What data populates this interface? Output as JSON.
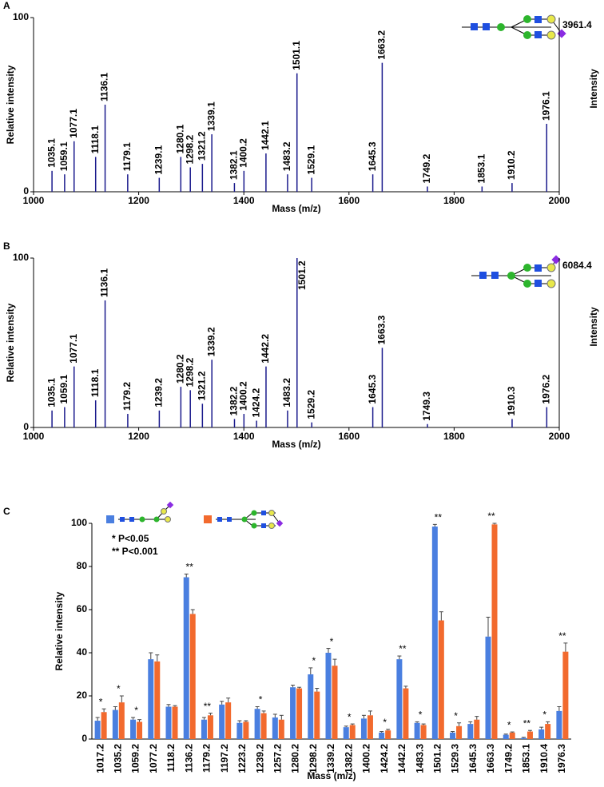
{
  "chart_data": [
    {
      "type": "spectrum",
      "panel": "A",
      "ylabel": "Relative intensity",
      "xlabel": "Mass (m/z)",
      "y2label": "Intensity",
      "max_intensity": 3961.4,
      "color": "#1a1a8c",
      "xlim": [
        1000,
        2000
      ],
      "xticks": [
        1000,
        1200,
        1400,
        1600,
        1800,
        2000
      ],
      "ylim": [
        0,
        100
      ],
      "yticks": [
        0,
        100
      ],
      "x": [
        1035.1,
        1059.1,
        1077.1,
        1118.1,
        1136.1,
        1179.1,
        1239.1,
        1280.1,
        1298.2,
        1321.2,
        1339.1,
        1382.1,
        1400.2,
        1442.1,
        1483.2,
        1501.1,
        1529.1,
        1645.3,
        1663.2,
        1749.2,
        1853.1,
        1910.2,
        1976.1
      ],
      "values": [
        12,
        10,
        29,
        20,
        50,
        10,
        8,
        20,
        14,
        16,
        33,
        5,
        12,
        22,
        10,
        68,
        8,
        10,
        74,
        3,
        3,
        5,
        39
      ]
    },
    {
      "type": "spectrum",
      "panel": "B",
      "ylabel": "Relative intensity",
      "xlabel": "Mass (m/z)",
      "y2label": "Intensity",
      "max_intensity": 6084.4,
      "color": "#1a1a8c",
      "xlim": [
        1000,
        2000
      ],
      "xticks": [
        1000,
        1200,
        1400,
        1600,
        1800,
        2000
      ],
      "ylim": [
        0,
        100
      ],
      "yticks": [
        0,
        100
      ],
      "x": [
        1035.1,
        1059.1,
        1077.1,
        1118.1,
        1136.1,
        1179.2,
        1239.2,
        1280.2,
        1298.2,
        1321.2,
        1339.2,
        1382.2,
        1400.2,
        1424.2,
        1442.2,
        1483.2,
        1501.2,
        1529.2,
        1645.3,
        1663.3,
        1749.3,
        1910.3,
        1976.2
      ],
      "values": [
        10,
        12,
        36,
        16,
        75,
        8,
        10,
        24,
        22,
        14,
        40,
        5,
        8,
        4,
        36,
        10,
        100,
        3,
        12,
        47,
        2,
        5,
        12
      ]
    },
    {
      "type": "bar",
      "panel": "C",
      "ylabel": "Relative intensity",
      "xlabel": "Mass (m/z)",
      "annotations": [
        "* P<0.05",
        "** P<0.001"
      ],
      "categories": [
        "1017.2",
        "1035.2",
        "1059.2",
        "1077.2",
        "1118.2",
        "1136.2",
        "1179.2",
        "1197.2",
        "1223.2",
        "1239.2",
        "1257.2",
        "1280.2",
        "1298.2",
        "1339.2",
        "1382.2",
        "1400.2",
        "1424.2",
        "1442.2",
        "1483.3",
        "1501.2",
        "1529.3",
        "1645.3",
        "1663.3",
        "1749.2",
        "1853.1",
        "1910.4",
        "1976.3"
      ],
      "ylim": [
        0,
        100
      ],
      "yticks": [
        0,
        20,
        40,
        60,
        80,
        100
      ],
      "series": [
        {
          "color": "#4a7fe0",
          "values": [
            8.5,
            13.5,
            9,
            37,
            15,
            75,
            9,
            16,
            7.5,
            14,
            10,
            24,
            30,
            40,
            5.5,
            9.5,
            3,
            37,
            7.5,
            98.5,
            3,
            7,
            47.5,
            2,
            0.5,
            4.5,
            13
          ],
          "errors": [
            1.5,
            1.5,
            1,
            3,
            1,
            1.5,
            1,
            1.5,
            1,
            1,
            1.5,
            1,
            3,
            2,
            0.5,
            1.5,
            0.5,
            1.5,
            0.5,
            1,
            0.5,
            1,
            9,
            0.3,
            0.3,
            1,
            2
          ]
        },
        {
          "color": "#f26a2e",
          "values": [
            12.5,
            17,
            8,
            36,
            15,
            58,
            11,
            17,
            8,
            12,
            9,
            23.5,
            22,
            34,
            6.5,
            11,
            4,
            23.5,
            6.5,
            55,
            6,
            9,
            99.5,
            3,
            3.5,
            7,
            40.5
          ],
          "errors": [
            1.5,
            3,
            1,
            3,
            0.5,
            2,
            1,
            2,
            0.5,
            1,
            2,
            0.5,
            1.5,
            3,
            0.5,
            2,
            0.5,
            1,
            0.5,
            4,
            1.5,
            1.5,
            0.5,
            0.3,
            0.5,
            1,
            4
          ]
        }
      ],
      "significance": [
        "*",
        "*",
        "*",
        null,
        null,
        "**",
        "**",
        null,
        null,
        "*",
        null,
        null,
        "*",
        "*",
        "*",
        null,
        "*",
        "**",
        "*",
        "**",
        "*",
        null,
        "**",
        "*",
        "**",
        "*",
        "**"
      ]
    }
  ]
}
